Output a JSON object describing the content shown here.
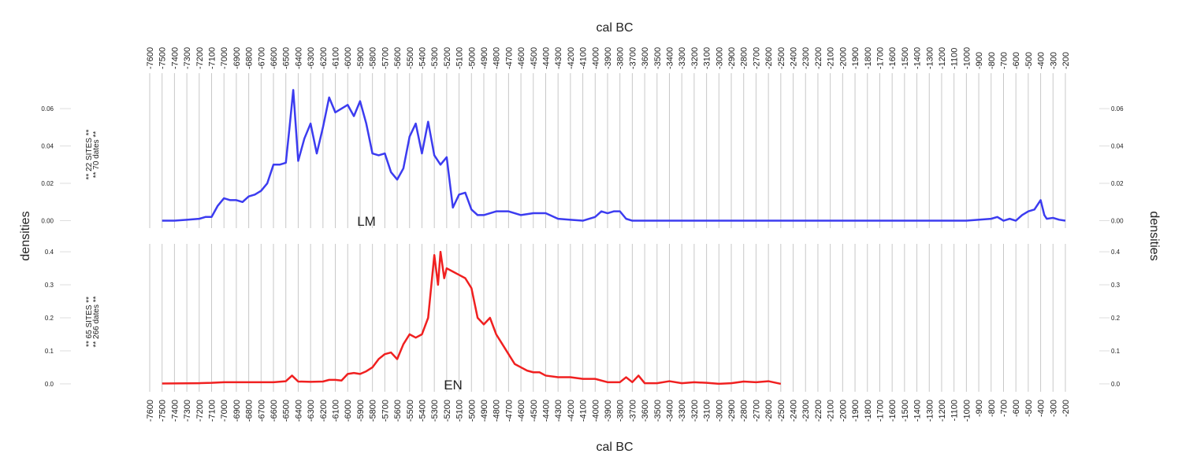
{
  "chart_data": [
    {
      "type": "line",
      "xlabel": "cal BC",
      "ylabel": "densities",
      "label": "LM",
      "side_text": [
        "** 22 SITES **",
        "** 70 dates **"
      ],
      "color": "#3c3cf0",
      "xlim": [
        -7600,
        -200
      ],
      "xticks": [
        -7600,
        -7500,
        -7400,
        -7300,
        -7200,
        -7100,
        -7000,
        -6900,
        -6800,
        -6700,
        -6600,
        -6500,
        -6400,
        -6300,
        -6200,
        -6100,
        -6000,
        -5900,
        -5800,
        -5700,
        -5600,
        -5500,
        -5400,
        -5300,
        -5200,
        -5100,
        -5000,
        -4900,
        -4800,
        -4700,
        -4600,
        -4500,
        -4400,
        -4300,
        -4200,
        -4100,
        -4000,
        -3900,
        -3800,
        -3700,
        -3600,
        -3500,
        -3400,
        -3300,
        -3200,
        -3100,
        -3000,
        -2900,
        -2800,
        -2700,
        -2600,
        -2500,
        -2400,
        -2300,
        -2200,
        -2100,
        -2000,
        -1900,
        -1800,
        -1700,
        -1600,
        -1500,
        -1400,
        -1300,
        -1200,
        -1100,
        -1000,
        -900,
        -800,
        -700,
        -600,
        -500,
        -400,
        -300,
        -200
      ],
      "ylim": [
        -0.004,
        0.079
      ],
      "yticks": [
        {
          "value": 0,
          "label": "0.00"
        },
        {
          "value": 0.02,
          "label": "0.02"
        },
        {
          "value": 0.04,
          "label": "0.04"
        },
        {
          "value": 0.06,
          "label": "0.06"
        }
      ],
      "x": [
        -7500,
        -7400,
        -7300,
        -7200,
        -7150,
        -7100,
        -7050,
        -7000,
        -6950,
        -6900,
        -6850,
        -6800,
        -6750,
        -6700,
        -6650,
        -6600,
        -6550,
        -6500,
        -6470,
        -6440,
        -6400,
        -6350,
        -6300,
        -6250,
        -6200,
        -6150,
        -6100,
        -6050,
        -6000,
        -5950,
        -5900,
        -5850,
        -5800,
        -5750,
        -5700,
        -5650,
        -5600,
        -5550,
        -5500,
        -5450,
        -5400,
        -5350,
        -5300,
        -5250,
        -5200,
        -5150,
        -5100,
        -5050,
        -5000,
        -4950,
        -4900,
        -4800,
        -4700,
        -4600,
        -4500,
        -4400,
        -4300,
        -4200,
        -4100,
        -4000,
        -3950,
        -3900,
        -3850,
        -3800,
        -3750,
        -3700,
        -3600,
        -3000,
        -2000,
        -1000,
        -800,
        -750,
        -700,
        -650,
        -600,
        -550,
        -500,
        -450,
        -400,
        -370,
        -350,
        -300,
        -250,
        -200
      ],
      "values": [
        0,
        0,
        0.0005,
        0.001,
        0.002,
        0.002,
        0.008,
        0.012,
        0.011,
        0.011,
        0.01,
        0.013,
        0.014,
        0.016,
        0.02,
        0.03,
        0.03,
        0.031,
        0.05,
        0.07,
        0.032,
        0.044,
        0.052,
        0.036,
        0.05,
        0.066,
        0.058,
        0.06,
        0.062,
        0.056,
        0.064,
        0.052,
        0.036,
        0.035,
        0.036,
        0.026,
        0.022,
        0.028,
        0.045,
        0.052,
        0.036,
        0.053,
        0.035,
        0.03,
        0.034,
        0.007,
        0.014,
        0.015,
        0.006,
        0.003,
        0.003,
        0.005,
        0.005,
        0.003,
        0.004,
        0.004,
        0.001,
        0.0005,
        0,
        0.002,
        0.005,
        0.004,
        0.005,
        0.005,
        0.001,
        0,
        0,
        0,
        0,
        0,
        0.001,
        0.002,
        0,
        0.001,
        0,
        0.003,
        0.005,
        0.006,
        0.011,
        0.003,
        0.001,
        0.0015,
        0.0005,
        0
      ]
    },
    {
      "type": "line",
      "xlabel": "cal BC",
      "ylabel": "densities",
      "label": "EN",
      "side_text": [
        "** 65 SITES **",
        "** 266 dates **"
      ],
      "color": "#f02020",
      "xlim": [
        -7600,
        -200
      ],
      "xticks": [
        -7600,
        -7500,
        -7400,
        -7300,
        -7200,
        -7100,
        -7000,
        -6900,
        -6800,
        -6700,
        -6600,
        -6500,
        -6400,
        -6300,
        -6200,
        -6100,
        -6000,
        -5900,
        -5800,
        -5700,
        -5600,
        -5500,
        -5400,
        -5300,
        -5200,
        -5100,
        -5000,
        -4900,
        -4800,
        -4700,
        -4600,
        -4500,
        -4400,
        -4300,
        -4200,
        -4100,
        -4000,
        -3900,
        -3800,
        -3700,
        -3600,
        -3500,
        -3400,
        -3300,
        -3200,
        -3100,
        -3000,
        -2900,
        -2800,
        -2700,
        -2600,
        -2500,
        -2400,
        -2300,
        -2200,
        -2100,
        -2000,
        -1900,
        -1800,
        -1700,
        -1600,
        -1500,
        -1400,
        -1300,
        -1200,
        -1100,
        -1000,
        -900,
        -800,
        -700,
        -600,
        -500,
        -400,
        -300,
        -200
      ],
      "ylim": [
        -0.024,
        0.424
      ],
      "yticks": [
        {
          "value": 0,
          "label": "0.0"
        },
        0.1,
        0.2,
        0.3,
        0.4
      ],
      "x": [
        -7500,
        -7200,
        -7100,
        -7000,
        -6800,
        -6600,
        -6500,
        -6450,
        -6400,
        -6300,
        -6200,
        -6150,
        -6100,
        -6050,
        -6000,
        -5950,
        -5900,
        -5850,
        -5800,
        -5750,
        -5700,
        -5650,
        -5600,
        -5550,
        -5500,
        -5450,
        -5400,
        -5350,
        -5300,
        -5270,
        -5250,
        -5220,
        -5200,
        -5150,
        -5100,
        -5050,
        -5000,
        -4950,
        -4900,
        -4850,
        -4800,
        -4750,
        -4700,
        -4650,
        -4600,
        -4550,
        -4500,
        -4450,
        -4400,
        -4300,
        -4200,
        -4100,
        -4000,
        -3900,
        -3800,
        -3750,
        -3700,
        -3650,
        -3600,
        -3500,
        -3400,
        -3300,
        -3200,
        -3100,
        -3000,
        -2900,
        -2800,
        -2700,
        -2600,
        -2500
      ],
      "values": [
        0.001,
        0.002,
        0.003,
        0.005,
        0.005,
        0.005,
        0.008,
        0.025,
        0.007,
        0.006,
        0.007,
        0.012,
        0.012,
        0.01,
        0.03,
        0.033,
        0.03,
        0.038,
        0.05,
        0.075,
        0.09,
        0.095,
        0.075,
        0.12,
        0.15,
        0.14,
        0.15,
        0.2,
        0.39,
        0.3,
        0.4,
        0.32,
        0.35,
        0.34,
        0.33,
        0.32,
        0.29,
        0.2,
        0.18,
        0.2,
        0.15,
        0.12,
        0.09,
        0.06,
        0.05,
        0.04,
        0.035,
        0.035,
        0.025,
        0.02,
        0.02,
        0.015,
        0.015,
        0.005,
        0.005,
        0.02,
        0.005,
        0.025,
        0.002,
        0.002,
        0.008,
        0.002,
        0.005,
        0.003,
        0,
        0.002,
        0.007,
        0.005,
        0.008,
        0
      ]
    }
  ]
}
